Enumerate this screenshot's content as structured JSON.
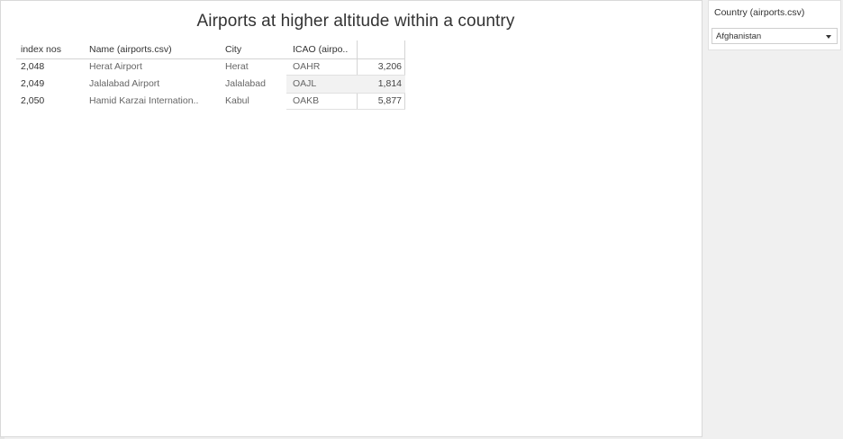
{
  "dashboard": {
    "title": "Airports at higher altitude within a country"
  },
  "table": {
    "headers": {
      "index": "index nos",
      "name": "Name (airports.csv)",
      "city": "City",
      "icao": "ICAO (airpo.."
    },
    "rows": [
      {
        "index": "2,048",
        "name": "Herat Airport",
        "city": "Herat",
        "icao": "OAHR",
        "altitude": "3,206"
      },
      {
        "index": "2,049",
        "name": "Jalalabad Airport",
        "city": "Jalalabad",
        "icao": "OAJL",
        "altitude": "1,814"
      },
      {
        "index": "2,050",
        "name": "Hamid Karzai Internation..",
        "city": "Kabul",
        "icao": "OAKB",
        "altitude": "5,877"
      }
    ]
  },
  "filter": {
    "title": "Country (airports.csv)",
    "selected": "Afghanistan",
    "icon": "chevron-down-icon"
  }
}
